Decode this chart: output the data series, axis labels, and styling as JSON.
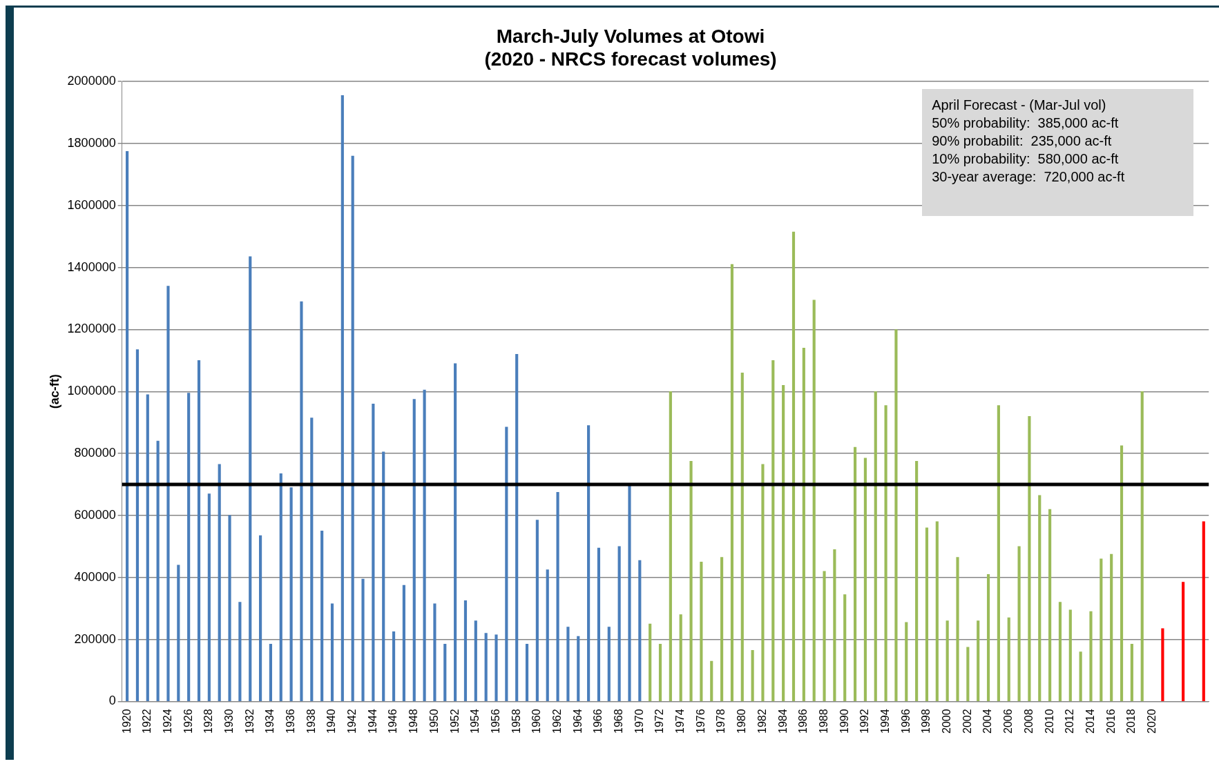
{
  "chart_data": {
    "type": "bar",
    "title": "March-July Volumes at Otowi\n(2020 - NRCS forecast volumes)",
    "ylabel": "(ac-ft)",
    "categories": [
      "1920",
      null,
      "1922",
      null,
      "1924",
      null,
      "1926",
      null,
      "1928",
      null,
      "1930",
      null,
      "1932",
      null,
      "1934",
      null,
      "1936",
      null,
      "1938",
      null,
      "1940",
      null,
      "1942",
      null,
      "1944",
      null,
      "1946",
      null,
      "1948",
      null,
      "1950",
      null,
      "1952",
      null,
      "1954",
      null,
      "1956",
      null,
      "1958",
      null,
      "1960",
      null,
      "1962",
      null,
      "1964",
      null,
      "1966",
      null,
      "1968",
      null,
      "1970",
      null,
      "1972",
      null,
      "1974",
      null,
      "1976",
      null,
      "1978",
      null,
      "1980",
      null,
      "1982",
      null,
      "1984",
      null,
      "1986",
      null,
      "1988",
      null,
      "1990",
      null,
      "1992",
      null,
      "1994",
      null,
      "1996",
      null,
      "1998",
      null,
      "2000",
      null,
      "2002",
      null,
      "2004",
      null,
      "2006",
      null,
      "2008",
      null,
      "2010",
      null,
      "2012",
      null,
      "2014",
      null,
      "2016",
      null,
      "2018",
      null,
      "2020",
      null,
      null,
      null,
      null,
      null
    ],
    "series": [
      {
        "color": "#4a7ebb",
        "values": [
          1775000,
          1135000,
          990000,
          840000,
          1340000,
          440000,
          995000,
          1100000,
          670000,
          765000,
          600000,
          320000,
          1435000,
          535000,
          185000,
          735000,
          690000,
          1290000,
          915000,
          550000,
          315000,
          1955000,
          1760000,
          395000,
          960000,
          805000,
          225000,
          375000,
          975000,
          1005000,
          315000,
          185000,
          1090000,
          325000,
          260000,
          220000,
          215000,
          885000,
          1120000,
          185000,
          585000,
          425000,
          675000,
          240000,
          210000,
          890000,
          495000,
          240000,
          500000,
          700000,
          455000,
          null,
          null,
          null,
          null,
          null,
          null,
          null,
          null,
          null,
          null,
          null,
          null,
          null,
          null,
          null,
          null,
          null,
          null,
          null,
          null,
          null,
          null,
          null,
          null,
          null,
          null,
          null,
          null,
          null,
          null,
          null,
          null,
          null,
          null,
          null,
          null,
          null,
          null,
          null,
          null,
          null,
          null,
          null,
          null,
          null,
          null,
          null,
          null,
          null,
          null,
          null,
          null,
          null,
          null,
          null
        ]
      },
      {
        "color": "#9bbb59",
        "values": [
          null,
          null,
          null,
          null,
          null,
          null,
          null,
          null,
          null,
          null,
          null,
          null,
          null,
          null,
          null,
          null,
          null,
          null,
          null,
          null,
          null,
          null,
          null,
          null,
          null,
          null,
          null,
          null,
          null,
          null,
          null,
          null,
          null,
          null,
          null,
          null,
          null,
          null,
          null,
          null,
          null,
          null,
          null,
          null,
          null,
          null,
          null,
          null,
          null,
          null,
          null,
          250000,
          185000,
          1000000,
          280000,
          775000,
          450000,
          130000,
          465000,
          1410000,
          1060000,
          165000,
          765000,
          1100000,
          1020000,
          1515000,
          1140000,
          1295000,
          420000,
          490000,
          345000,
          820000,
          785000,
          1000000,
          955000,
          1200000,
          255000,
          775000,
          560000,
          580000,
          260000,
          465000,
          175000,
          260000,
          410000,
          955000,
          270000,
          500000,
          920000,
          665000,
          620000,
          320000,
          295000,
          160000,
          290000,
          460000,
          475000,
          825000,
          185000,
          1000000,
          null,
          null,
          null,
          null,
          null,
          null
        ]
      },
      {
        "color": "#ff0000",
        "values": [
          null,
          null,
          null,
          null,
          null,
          null,
          null,
          null,
          null,
          null,
          null,
          null,
          null,
          null,
          null,
          null,
          null,
          null,
          null,
          null,
          null,
          null,
          null,
          null,
          null,
          null,
          null,
          null,
          null,
          null,
          null,
          null,
          null,
          null,
          null,
          null,
          null,
          null,
          null,
          null,
          null,
          null,
          null,
          null,
          null,
          null,
          null,
          null,
          null,
          null,
          null,
          null,
          null,
          null,
          null,
          null,
          null,
          null,
          null,
          null,
          null,
          null,
          null,
          null,
          null,
          null,
          null,
          null,
          null,
          null,
          null,
          null,
          null,
          null,
          null,
          null,
          null,
          null,
          null,
          null,
          null,
          null,
          null,
          null,
          null,
          null,
          null,
          null,
          null,
          null,
          null,
          null,
          null,
          null,
          null,
          null,
          null,
          null,
          null,
          null,
          null,
          235000,
          null,
          385000,
          null,
          580000
        ]
      }
    ],
    "ylim": [
      0,
      2000000
    ],
    "yticks": [
      0,
      200000,
      400000,
      600000,
      800000,
      1000000,
      1200000,
      1400000,
      1600000,
      1800000,
      2000000
    ],
    "grid": "y",
    "legend": false,
    "ref_lines": [
      {
        "axis": "y",
        "value": 700000,
        "color": "#000000"
      }
    ],
    "annotations": [
      "April Forecast - (Mar-Jul vol)",
      "50% probability:  385,000 ac-ft",
      "90% probabilit:  235,000 ac-ft",
      "10% probability:  580,000 ac-ft",
      "30-year average:  720,000 ac-ft"
    ]
  }
}
